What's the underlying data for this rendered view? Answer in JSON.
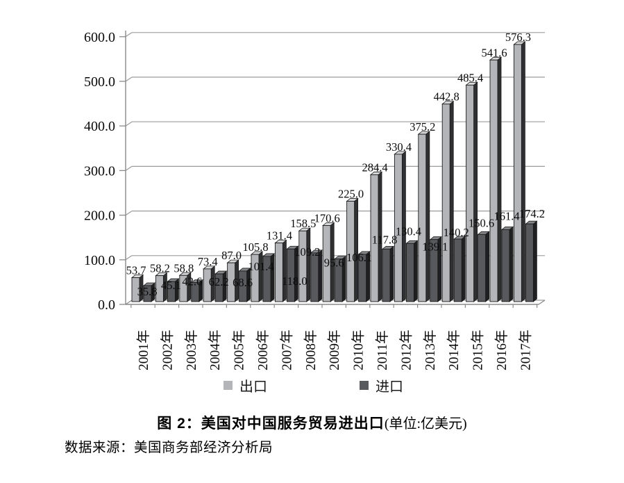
{
  "chart_data": {
    "type": "bar",
    "title": "图 2：美国对中国服务贸易进出口",
    "unit_note": "(单位:亿美元)",
    "source": "数据来源：美国商务部经济分析局",
    "categories": [
      "2001年",
      "2002年",
      "2003年",
      "2004年",
      "2005年",
      "2006年",
      "2007年",
      "2008年",
      "2009年",
      "2010年",
      "2011年",
      "2012年",
      "2013年",
      "2014年",
      "2015年",
      "2016年",
      "2017年"
    ],
    "series": [
      {
        "name": "出口",
        "color": "#b3b5b8",
        "side_color": "#303032",
        "top_color": "#d7d8da",
        "values": [
          53.7,
          58.2,
          58.8,
          73.4,
          87.0,
          105.8,
          131.4,
          158.5,
          170.6,
          225.0,
          284.4,
          330.4,
          375.2,
          442.8,
          485.4,
          541.6,
          576.3
        ]
      },
      {
        "name": "进口",
        "color": "#57595d",
        "side_color": "#202022",
        "top_color": "#85878b",
        "values": [
          35.8,
          45.1,
          42.6,
          62.2,
          68.6,
          101.4,
          118.0,
          109.2,
          95.6,
          106.1,
          117.8,
          130.4,
          139.1,
          140.2,
          150.6,
          161.4,
          174.2
        ]
      }
    ],
    "ylim": [
      0,
      600
    ],
    "ytick_labels": [
      "0.0",
      "100.0",
      "200.0",
      "300.0",
      "400.0",
      "500.0",
      "600.0"
    ],
    "grid": true,
    "grid_color": "#9b9b9b",
    "axis_color": "#8a8a8a",
    "bar_outline_color": "#1b1b1b",
    "legend_position": "bottom"
  }
}
